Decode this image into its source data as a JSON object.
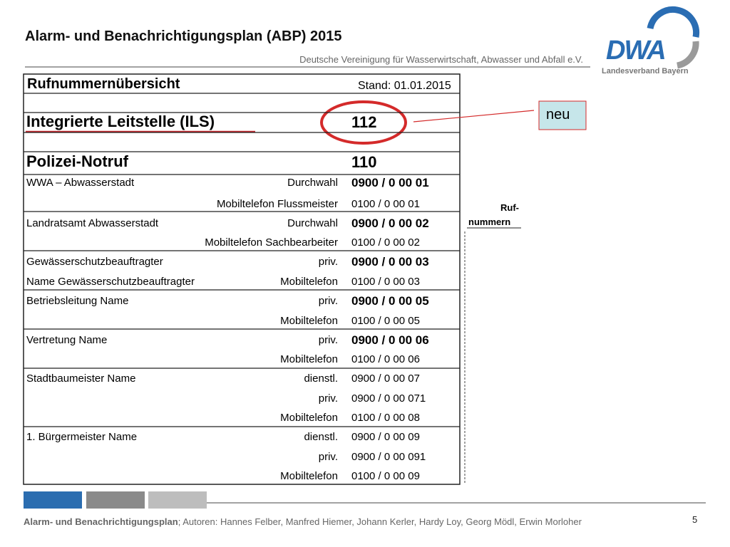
{
  "header": {
    "title": "Alarm- und Benachrichtigungsplan (ABP) 2015",
    "subtitle": "Deutsche Vereinigung für Wasserwirtschaft, Abwasser und Abfall e.V."
  },
  "logo": {
    "name": "DWA",
    "region": "Landesverband Bayern"
  },
  "table": {
    "title": "Rufnummernübersicht",
    "date": "Stand: 01.01.2015",
    "rows": [
      {
        "name": "Integrierte Leitstelle (ILS)",
        "number": "112"
      },
      {
        "name": "Polizei-Notruf",
        "number": "110"
      },
      {
        "name": "WWA – Abwasserstadt",
        "label": "Durchwahl",
        "number": "0900 / 0 00 01"
      },
      {
        "label": "Mobiltelefon Flussmeister",
        "number": "0100 / 0 00 01"
      },
      {
        "name": "Landratsamt Abwasserstadt",
        "label": "Durchwahl",
        "number": "0900 / 0 00 02"
      },
      {
        "label": "Mobiltelefon Sachbearbeiter",
        "number": "0100 / 0 00 02"
      },
      {
        "name": "Gewässerschutzbeauftragter",
        "label": "priv.",
        "number": "0900 / 0 00 03"
      },
      {
        "name": "Name Gewässerschutzbeauftragter",
        "label": "Mobiltelefon",
        "number": "0100 / 0 00 03"
      },
      {
        "name": "Betriebsleitung Name",
        "label": "priv.",
        "number": "0900 / 0 00 05"
      },
      {
        "label": "Mobiltelefon",
        "number": "0100 / 0 00 05"
      },
      {
        "name": "Vertretung Name",
        "label": "priv.",
        "number": "0900 / 0 00 06"
      },
      {
        "label": "Mobiltelefon",
        "number": "0100 / 0 00 06"
      },
      {
        "name": "Stadtbaumeister Name",
        "label": "dienstl.",
        "number": "0900 / 0 00 07"
      },
      {
        "label": "priv.",
        "number": "0900 / 0 00 071"
      },
      {
        "label": "Mobiltelefon",
        "number": "0100 / 0 00 08"
      },
      {
        "name": "1. Bürgermeister Name",
        "label": "dienstl.",
        "number": "0900 / 0 00 09"
      },
      {
        "label": "priv.",
        "number": "0900 / 0 00 091"
      },
      {
        "label": "Mobiltelefon",
        "number": "0100 / 0 00 09"
      }
    ]
  },
  "callout": {
    "text": "neu"
  },
  "side_tab": {
    "lines": [
      "Ruf-",
      "nummern"
    ]
  },
  "footer": {
    "title": "Alarm- und Benachrichtigungsplan",
    "authors": "; Autoren: Hannes Felber, Manfred Hiemer, Johann Kerler, Hardy Loy, Georg Mödl, Erwin Morloher",
    "page": "5"
  }
}
